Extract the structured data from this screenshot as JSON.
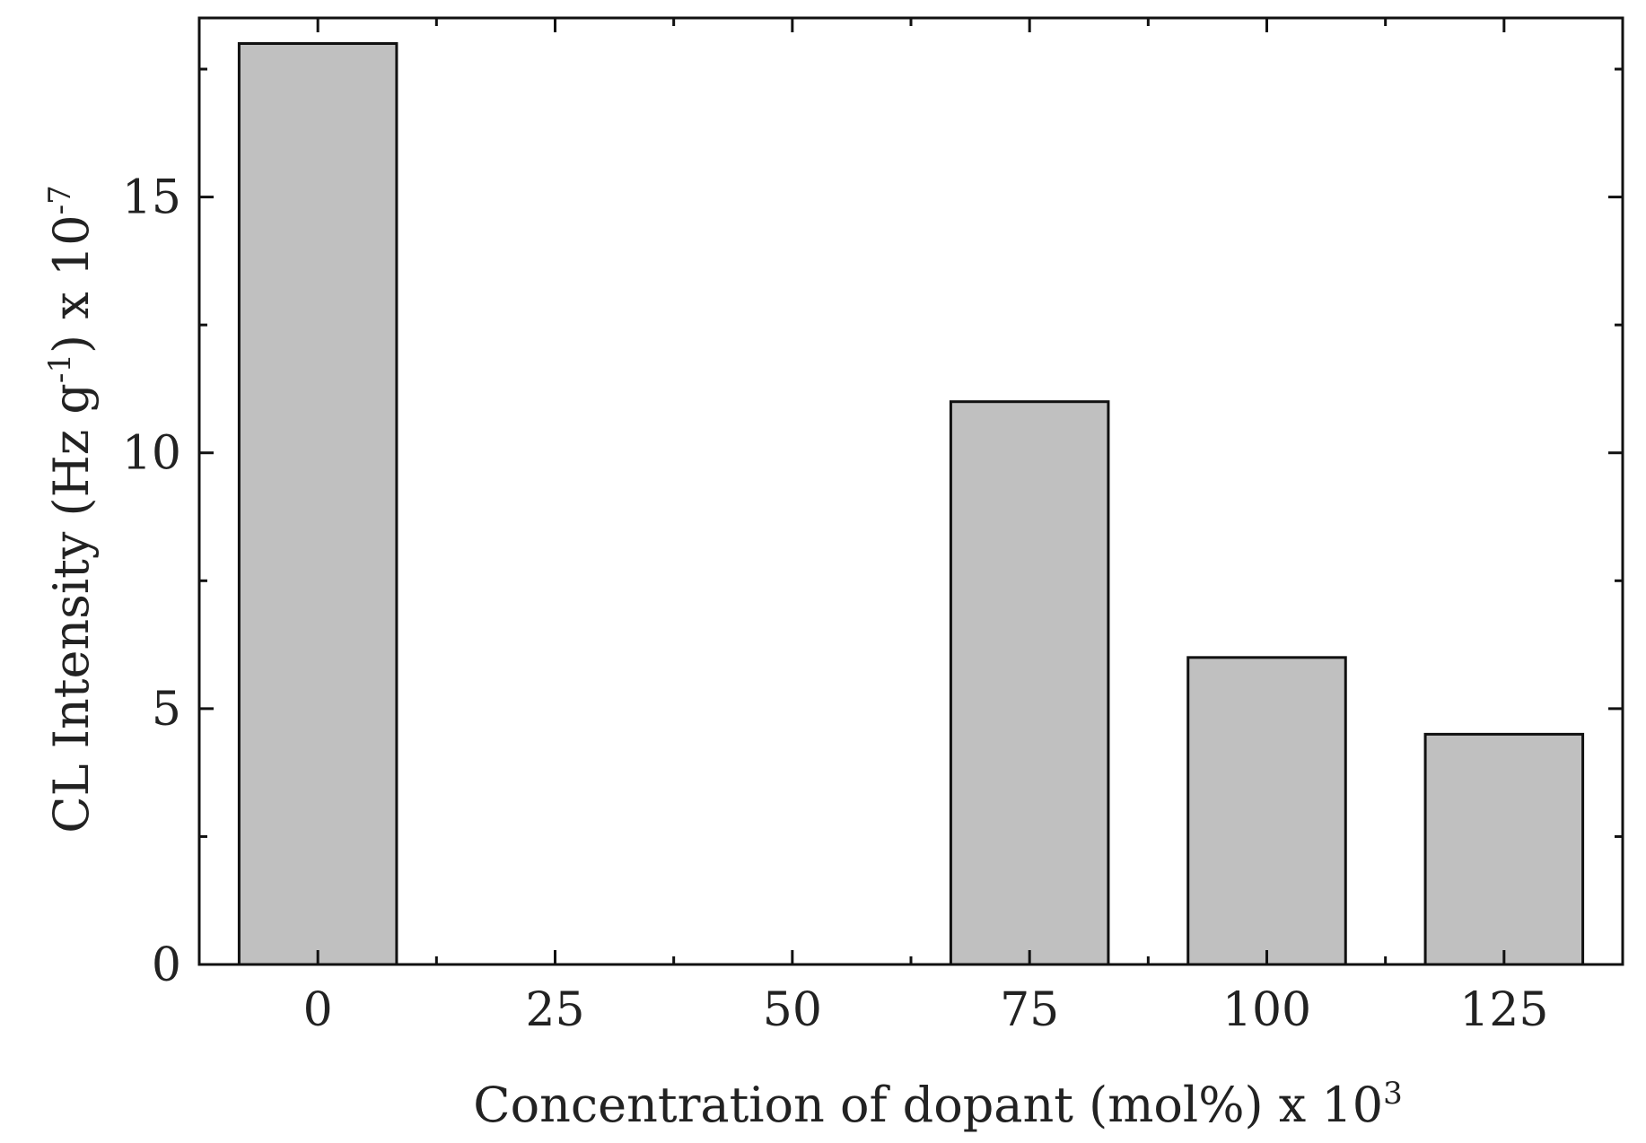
{
  "chart_data": {
    "type": "bar",
    "categories": [
      "0",
      "25",
      "50",
      "75",
      "100",
      "125"
    ],
    "x": [
      0,
      25,
      50,
      75,
      100,
      125
    ],
    "values": [
      18.0,
      0,
      0,
      11.0,
      6.0,
      4.5
    ],
    "xlabel": {
      "text": "Concentration of dopant (mol%) x 10",
      "sup": "3"
    },
    "ylabel": {
      "text": "CL Intensity (Hz g",
      "sup1": "-1",
      "mid": ") x 10",
      "sup2": "-7"
    },
    "xlim": [
      -12.5,
      137.5
    ],
    "ylim": [
      0,
      18.5
    ],
    "yticks": [
      0,
      5,
      10,
      15
    ],
    "yticks_minor": [
      2.5,
      7.5,
      12.5,
      17.5
    ],
    "xticks_minor": [
      12.5,
      37.5,
      62.5,
      87.5,
      112.5
    ],
    "grid": false,
    "legend": "none",
    "colors": {
      "bar_fill": "#c0c0c0",
      "bar_stroke": "#111111",
      "axis": "#111111"
    }
  }
}
